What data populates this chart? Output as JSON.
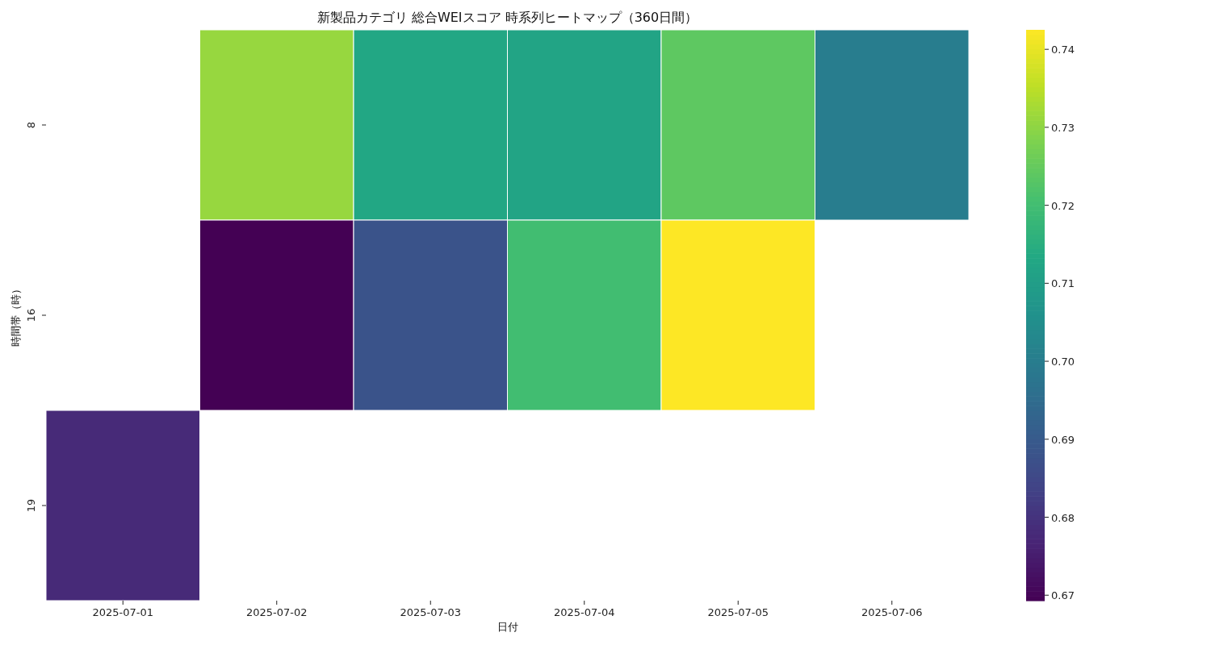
{
  "chart_data": {
    "type": "heatmap",
    "title": "新製品カテゴリ 総合WEIスコア 時系列ヒートマップ（360日間）",
    "xlabel": "日付",
    "ylabel": "時間帯（時）",
    "categories": [
      "2025-07-01",
      "2025-07-02",
      "2025-07-03",
      "2025-07-04",
      "2025-07-05",
      "2025-07-06"
    ],
    "y_categories": [
      "8",
      "16",
      "19"
    ],
    "cells": [
      [
        null,
        0.731,
        0.713,
        0.712,
        0.724,
        0.7
      ],
      [
        null,
        0.6693,
        0.688,
        0.72,
        0.7425,
        null
      ],
      [
        0.678,
        null,
        null,
        null,
        null,
        null
      ]
    ],
    "clim": [
      0.6693,
      0.7425
    ],
    "cticks": [
      0.67,
      0.68,
      0.69,
      {
        "value": 0.7,
        "label": "0.70"
      },
      0.71,
      0.72,
      0.73,
      0.74
    ]
  }
}
